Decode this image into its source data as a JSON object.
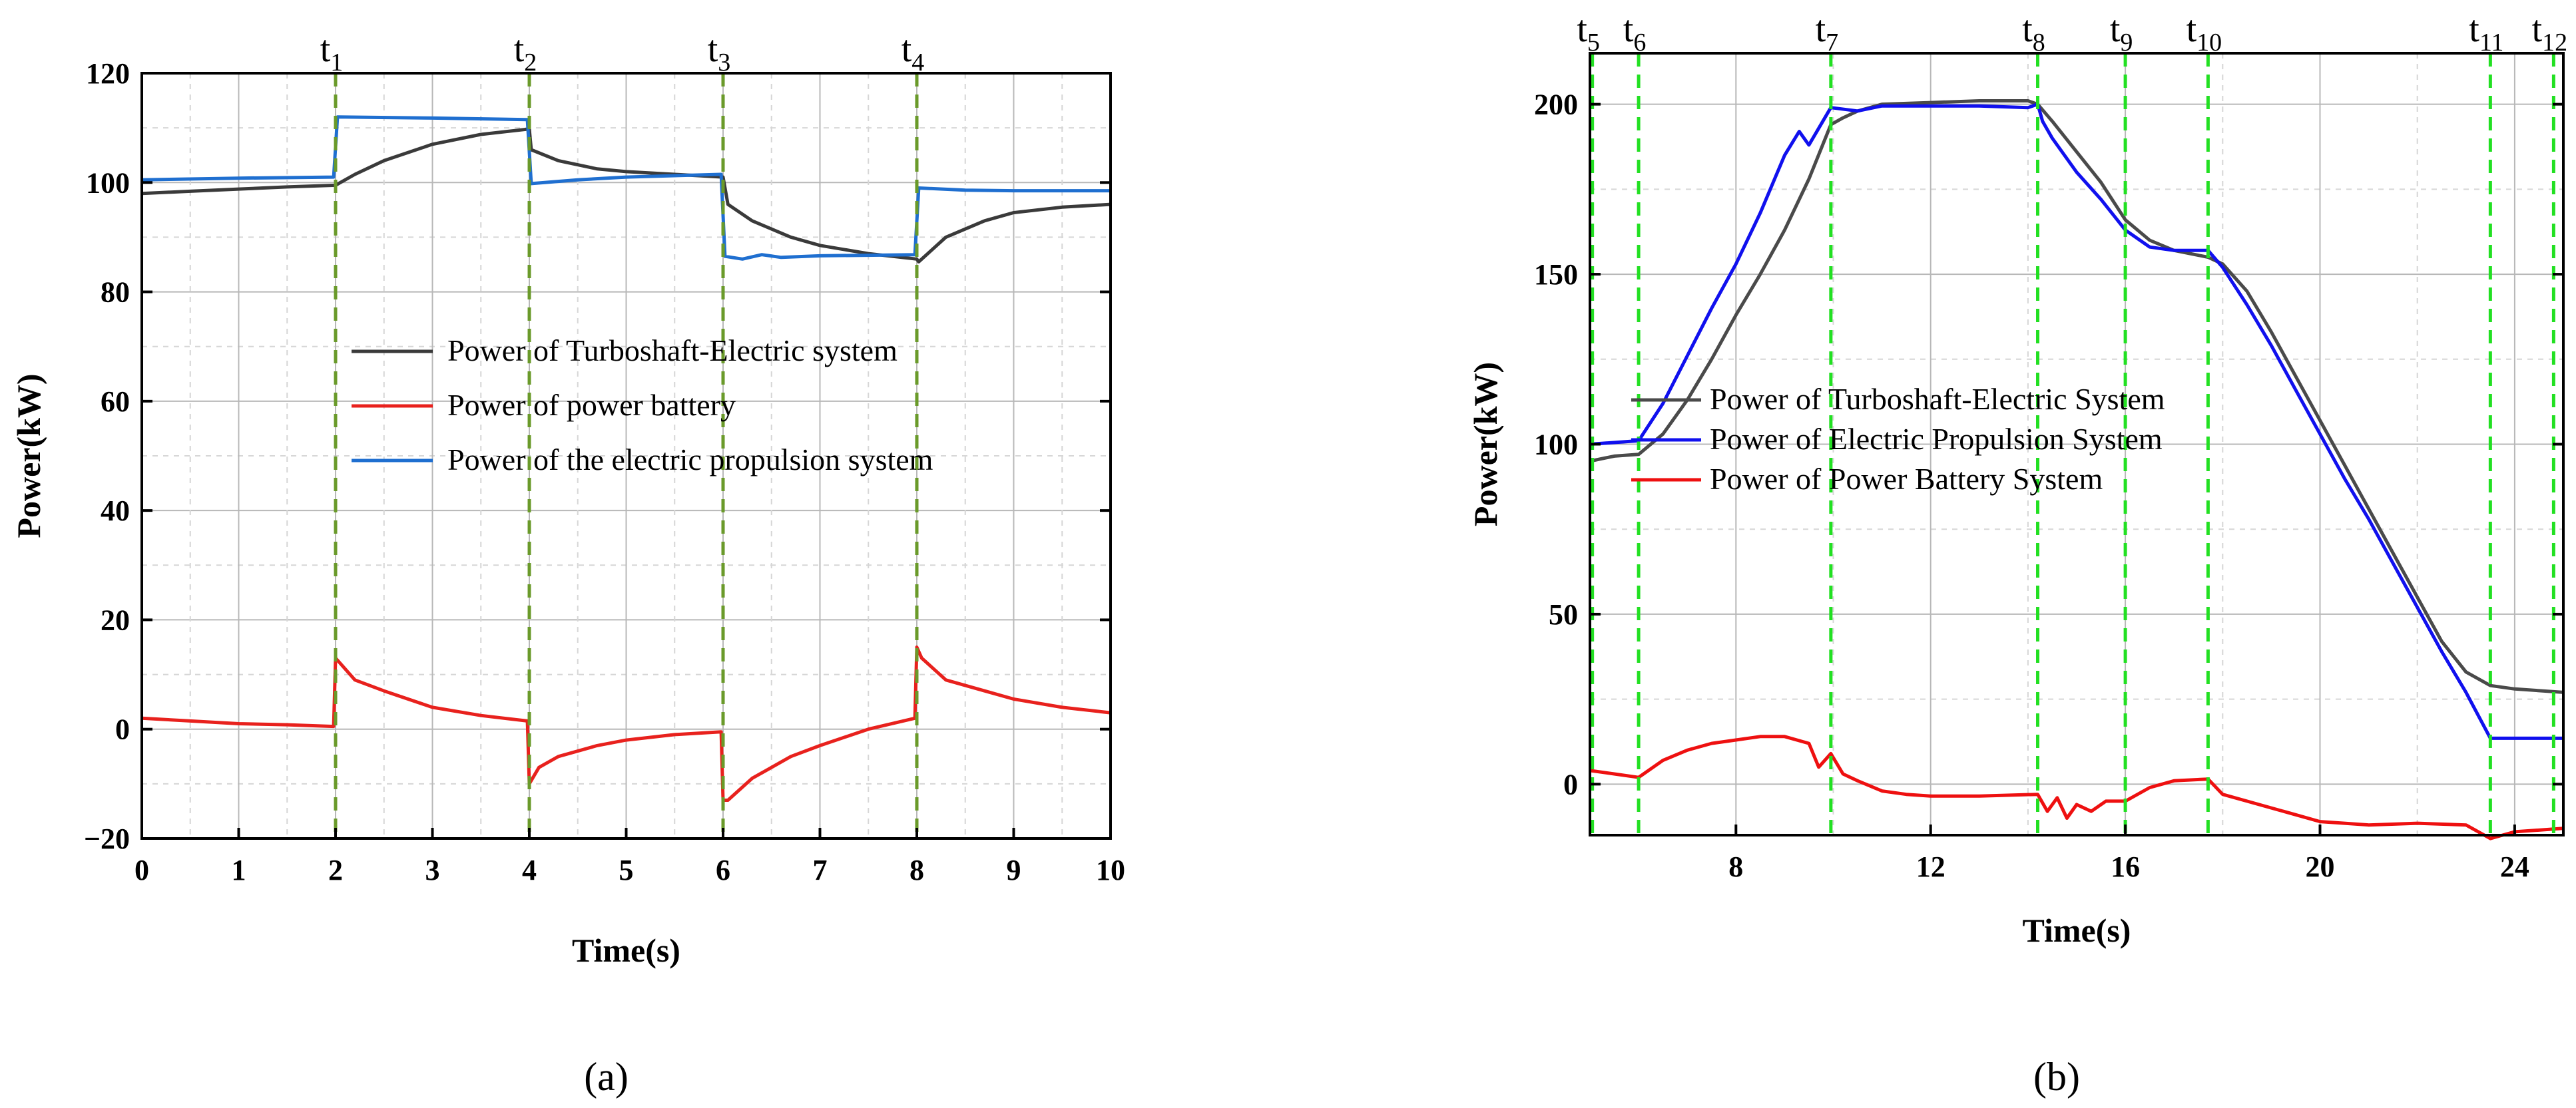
{
  "chart_data": [
    {
      "id": "a",
      "type": "line",
      "caption": "(a)",
      "xlabel": "Time(s)",
      "ylabel": "Power(kW)",
      "xlim": [
        0,
        10
      ],
      "ylim": [
        -20,
        120
      ],
      "xticks": [
        0,
        1,
        2,
        3,
        4,
        5,
        6,
        7,
        8,
        9,
        10
      ],
      "yticks": [
        -20,
        0,
        20,
        40,
        60,
        80,
        100,
        120
      ],
      "ytick_labels": [
        "−20",
        "0",
        "20",
        "40",
        "60",
        "80",
        "100",
        "120"
      ],
      "grid": true,
      "legend_position": "center",
      "marker_color": "#6a9a2a",
      "markers": [
        {
          "base": "t",
          "sub": "1",
          "x": 2
        },
        {
          "base": "t",
          "sub": "2",
          "x": 4
        },
        {
          "base": "t",
          "sub": "3",
          "x": 6
        },
        {
          "base": "t",
          "sub": "4",
          "x": 8
        }
      ],
      "series": [
        {
          "name": "Power of Turboshaft-Electric system",
          "color": "#3a3a3a",
          "points": [
            [
              0,
              98
            ],
            [
              0.5,
              98.4
            ],
            [
              1,
              98.8
            ],
            [
              1.5,
              99.2
            ],
            [
              2,
              99.5
            ],
            [
              2.2,
              101.5
            ],
            [
              2.5,
              104
            ],
            [
              3,
              107
            ],
            [
              3.5,
              108.8
            ],
            [
              4,
              109.8
            ],
            [
              4.02,
              106
            ],
            [
              4.3,
              104
            ],
            [
              4.7,
              102.5
            ],
            [
              5,
              102
            ],
            [
              5.5,
              101.5
            ],
            [
              6,
              101
            ],
            [
              6.05,
              96
            ],
            [
              6.3,
              93
            ],
            [
              6.7,
              90
            ],
            [
              7,
              88.5
            ],
            [
              7.5,
              87
            ],
            [
              8,
              86
            ],
            [
              8.02,
              85.5
            ],
            [
              8.3,
              90
            ],
            [
              8.7,
              93
            ],
            [
              9,
              94.5
            ],
            [
              9.5,
              95.5
            ],
            [
              10,
              96
            ]
          ]
        },
        {
          "name": "Power of power battery",
          "color": "#e8211d",
          "points": [
            [
              0,
              2
            ],
            [
              0.5,
              1.5
            ],
            [
              1,
              1
            ],
            [
              1.5,
              0.8
            ],
            [
              1.98,
              0.5
            ],
            [
              2,
              13
            ],
            [
              2.05,
              12
            ],
            [
              2.2,
              9
            ],
            [
              2.5,
              7
            ],
            [
              3,
              4
            ],
            [
              3.5,
              2.5
            ],
            [
              3.98,
              1.5
            ],
            [
              4,
              -10
            ],
            [
              4.1,
              -7
            ],
            [
              4.3,
              -5
            ],
            [
              4.7,
              -3
            ],
            [
              5,
              -2
            ],
            [
              5.5,
              -1
            ],
            [
              5.98,
              -0.5
            ],
            [
              6,
              -13
            ],
            [
              6.05,
              -13
            ],
            [
              6.3,
              -9
            ],
            [
              6.7,
              -5
            ],
            [
              7,
              -3
            ],
            [
              7.5,
              0
            ],
            [
              7.98,
              2
            ],
            [
              8,
              15
            ],
            [
              8.05,
              13
            ],
            [
              8.3,
              9
            ],
            [
              8.7,
              7
            ],
            [
              9,
              5.5
            ],
            [
              9.5,
              4
            ],
            [
              10,
              3
            ]
          ]
        },
        {
          "name": "Power of the electric propulsion system",
          "color": "#1f6fd0",
          "points": [
            [
              0,
              100.5
            ],
            [
              1,
              100.8
            ],
            [
              1.98,
              101
            ],
            [
              2.02,
              112
            ],
            [
              3,
              111.8
            ],
            [
              3.98,
              111.5
            ],
            [
              4.02,
              99.8
            ],
            [
              4.5,
              100.5
            ],
            [
              5,
              101
            ],
            [
              5.98,
              101.5
            ],
            [
              6.02,
              86.5
            ],
            [
              6.2,
              86
            ],
            [
              6.4,
              86.8
            ],
            [
              6.6,
              86.3
            ],
            [
              7,
              86.6
            ],
            [
              7.98,
              86.8
            ],
            [
              8.02,
              99
            ],
            [
              8.5,
              98.6
            ],
            [
              9,
              98.5
            ],
            [
              10,
              98.5
            ]
          ]
        }
      ]
    },
    {
      "id": "b",
      "type": "line",
      "caption": "(b)",
      "xlabel": "Time(s)",
      "ylabel": "Power(kW)",
      "xlim": [
        5,
        25
      ],
      "ylim": [
        -15,
        215
      ],
      "xticks": [
        8,
        12,
        16,
        20,
        24
      ],
      "yticks": [
        0,
        50,
        100,
        150,
        200
      ],
      "ytick_labels": [
        "0",
        "50",
        "100",
        "150",
        "200"
      ],
      "grid": true,
      "legend_position": "center-left",
      "marker_color": "#22e022",
      "markers": [
        {
          "base": "t",
          "sub": "5",
          "x": 5.05
        },
        {
          "base": "t",
          "sub": "6",
          "x": 6.0
        },
        {
          "base": "t",
          "sub": "7",
          "x": 9.95
        },
        {
          "base": "t",
          "sub": "8",
          "x": 14.2
        },
        {
          "base": "t",
          "sub": "9",
          "x": 16.0
        },
        {
          "base": "t",
          "sub": "10",
          "x": 17.7
        },
        {
          "base": "t",
          "sub": "11",
          "x": 23.5
        },
        {
          "base": "t",
          "sub": "12",
          "x": 24.8
        }
      ],
      "series": [
        {
          "name": "Power of Turboshaft-Electric System",
          "color": "#4a4a4a",
          "points": [
            [
              5,
              95
            ],
            [
              5.5,
              96.5
            ],
            [
              6,
              97
            ],
            [
              6.5,
              103
            ],
            [
              7,
              113
            ],
            [
              7.5,
              125
            ],
            [
              8,
              138
            ],
            [
              8.5,
              150
            ],
            [
              9,
              163
            ],
            [
              9.5,
              178
            ],
            [
              9.95,
              194
            ],
            [
              10.2,
              196
            ],
            [
              10.5,
              198
            ],
            [
              11,
              200
            ],
            [
              12,
              200.5
            ],
            [
              13,
              201
            ],
            [
              14,
              201
            ],
            [
              14.2,
              200
            ],
            [
              14.5,
              195
            ],
            [
              15,
              186
            ],
            [
              15.5,
              177
            ],
            [
              16,
              166
            ],
            [
              16.5,
              160
            ],
            [
              17,
              157
            ],
            [
              17.7,
              155
            ],
            [
              18,
              153
            ],
            [
              18.5,
              145
            ],
            [
              19,
              133
            ],
            [
              19.5,
              120
            ],
            [
              20,
              107
            ],
            [
              20.5,
              94
            ],
            [
              21,
              81
            ],
            [
              21.5,
              68
            ],
            [
              22,
              55
            ],
            [
              22.5,
              42
            ],
            [
              23,
              33
            ],
            [
              23.5,
              29
            ],
            [
              24,
              28
            ],
            [
              25,
              27
            ]
          ]
        },
        {
          "name": "Power of Electric Propulsion System",
          "color": "#1010ee",
          "points": [
            [
              5,
              100
            ],
            [
              6,
              101
            ],
            [
              6.5,
              112
            ],
            [
              7,
              126
            ],
            [
              7.5,
              140
            ],
            [
              8,
              153
            ],
            [
              8.5,
              168
            ],
            [
              9,
              185
            ],
            [
              9.3,
              192
            ],
            [
              9.5,
              188
            ],
            [
              9.95,
              199
            ],
            [
              10.5,
              198
            ],
            [
              11,
              199.5
            ],
            [
              12,
              199.5
            ],
            [
              13,
              199.5
            ],
            [
              14,
              199
            ],
            [
              14.2,
              200
            ],
            [
              14.3,
              195
            ],
            [
              14.5,
              190
            ],
            [
              15,
              180
            ],
            [
              15.5,
              172
            ],
            [
              16,
              163
            ],
            [
              16.5,
              158
            ],
            [
              17,
              157
            ],
            [
              17.7,
              157
            ],
            [
              18,
              152
            ],
            [
              18.5,
              141
            ],
            [
              19,
              129
            ],
            [
              19.5,
              116
            ],
            [
              20,
              103
            ],
            [
              20.5,
              90
            ],
            [
              21,
              78
            ],
            [
              21.5,
              65
            ],
            [
              22,
              52
            ],
            [
              22.5,
              39
            ],
            [
              23,
              27
            ],
            [
              23.5,
              13.5
            ],
            [
              24,
              13.5
            ],
            [
              25,
              13.5
            ]
          ]
        },
        {
          "name": "Power of Power Battery System",
          "color": "#ee1010",
          "points": [
            [
              5,
              4
            ],
            [
              5.5,
              3
            ],
            [
              6,
              2
            ],
            [
              6.5,
              7
            ],
            [
              7,
              10
            ],
            [
              7.5,
              12
            ],
            [
              8,
              13
            ],
            [
              8.5,
              14
            ],
            [
              9,
              14
            ],
            [
              9.5,
              12
            ],
            [
              9.7,
              5
            ],
            [
              9.95,
              9
            ],
            [
              10.2,
              3
            ],
            [
              10.5,
              1
            ],
            [
              11,
              -2
            ],
            [
              11.5,
              -3
            ],
            [
              12,
              -3.5
            ],
            [
              13,
              -3.5
            ],
            [
              14.2,
              -3
            ],
            [
              14.4,
              -8
            ],
            [
              14.6,
              -4
            ],
            [
              14.8,
              -10
            ],
            [
              15,
              -6
            ],
            [
              15.3,
              -8
            ],
            [
              15.6,
              -5
            ],
            [
              16,
              -5
            ],
            [
              16.5,
              -1
            ],
            [
              17,
              1
            ],
            [
              17.7,
              1.5
            ],
            [
              18,
              -3
            ],
            [
              18.5,
              -5
            ],
            [
              19,
              -7
            ],
            [
              19.5,
              -9
            ],
            [
              20,
              -11
            ],
            [
              20.5,
              -11.5
            ],
            [
              21,
              -12
            ],
            [
              22,
              -11.5
            ],
            [
              23,
              -12
            ],
            [
              23.5,
              -16
            ],
            [
              24,
              -14
            ],
            [
              25,
              -13
            ]
          ]
        }
      ]
    }
  ]
}
